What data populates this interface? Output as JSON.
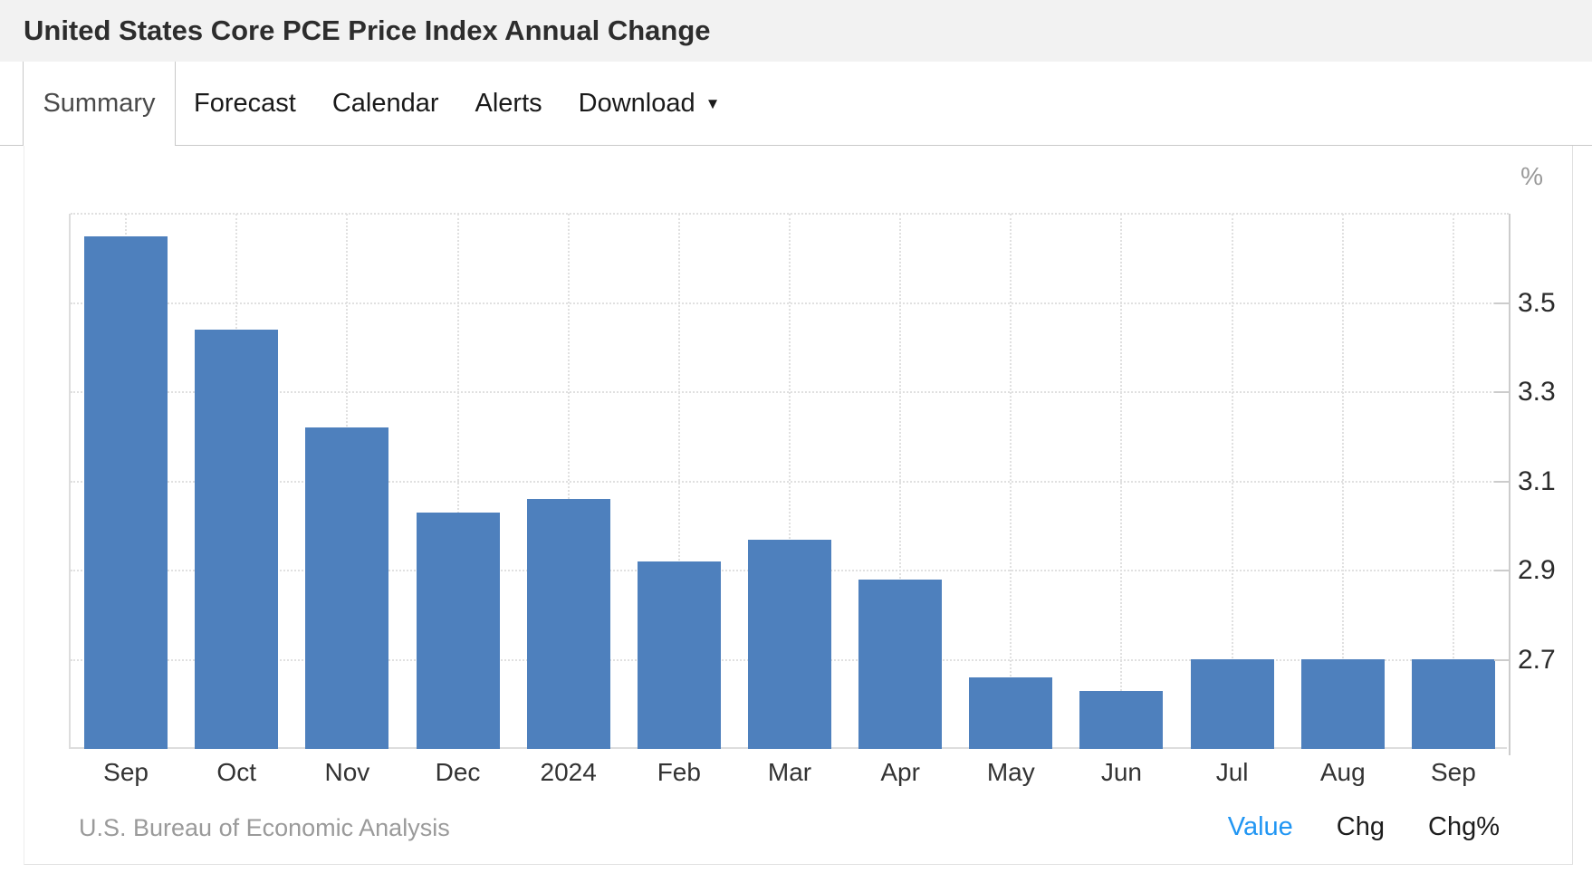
{
  "header": {
    "title": "United States Core PCE Price Index Annual Change"
  },
  "tabs": {
    "items": [
      {
        "label": "Summary",
        "active": true
      },
      {
        "label": "Forecast",
        "active": false
      },
      {
        "label": "Calendar",
        "active": false
      },
      {
        "label": "Alerts",
        "active": false
      },
      {
        "label": "Download",
        "active": false,
        "has_dropdown": true
      }
    ]
  },
  "icons": {
    "caret_down": "▼"
  },
  "chart_data": {
    "type": "bar",
    "title": "United States Core PCE Price Index Annual Change",
    "unit": "%",
    "categories": [
      "Sep",
      "Oct",
      "Nov",
      "Dec",
      "2024",
      "Feb",
      "Mar",
      "Apr",
      "May",
      "Jun",
      "Jul",
      "Aug",
      "Sep"
    ],
    "values": [
      3.65,
      3.44,
      3.22,
      3.03,
      3.06,
      2.92,
      2.97,
      2.88,
      2.66,
      2.63,
      2.7,
      2.7,
      2.7
    ],
    "ylabel": "%",
    "xlabel": "",
    "ylim": [
      2.5,
      3.7
    ],
    "yticks": [
      2.7,
      2.9,
      3.1,
      3.3,
      3.5
    ],
    "grid": true,
    "bar_color": "#4e80bd",
    "axis_side": "right"
  },
  "footer": {
    "source": "U.S. Bureau of Economic Analysis",
    "links": [
      {
        "label": "Value",
        "active": true
      },
      {
        "label": "Chg",
        "active": false
      },
      {
        "label": "Chg%",
        "active": false
      }
    ]
  },
  "colors": {
    "header_bg": "#f2f2f2",
    "bar": "#4e80bd",
    "accent_blue": "#2196f3",
    "grid": "#e0e0e0"
  }
}
